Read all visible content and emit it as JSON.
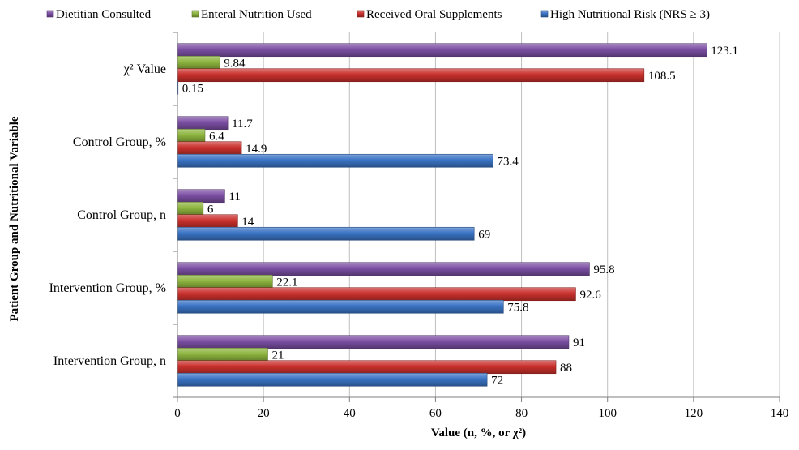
{
  "chart_data": {
    "type": "bar",
    "orientation": "horizontal",
    "title": "",
    "xlabel": "Value (n, %, or χ²)",
    "ylabel": "Patient Group and Nutritional Variable",
    "xlim": [
      0,
      140
    ],
    "xticks": [
      "0",
      "20",
      "40",
      "60",
      "80",
      "100",
      "120",
      "140"
    ],
    "grid": "vertical",
    "legend_position": "top",
    "categories": [
      "χ² Value",
      "Control Group, %",
      "Control Group, n",
      "Intervention Group, %",
      "Intervention Group, n"
    ],
    "series": [
      {
        "name": "Dietitian Consulted",
        "color": "#7b4ea3",
        "values": [
          123.1,
          11.7,
          11,
          95.8,
          91
        ],
        "labels": [
          "123.1",
          "11.7",
          "11",
          "95.8",
          "91"
        ]
      },
      {
        "name": "Enteral Nutrition Used",
        "color": "#8db43e",
        "values": [
          9.84,
          6.4,
          6,
          22.1,
          21
        ],
        "labels": [
          "9.84",
          "6.4",
          "6",
          "22.1",
          "21"
        ]
      },
      {
        "name": "Received Oral Supplements",
        "color": "#c9302c",
        "values": [
          108.5,
          14.9,
          14,
          92.6,
          88
        ],
        "labels": [
          "108.5",
          "14.9",
          "14",
          "92.6",
          "88"
        ]
      },
      {
        "name": "High Nutritional Risk (NRS ≥ 3)",
        "color": "#3a73c4",
        "values": [
          0.15,
          73.4,
          69,
          75.8,
          72
        ],
        "labels": [
          "0.15",
          "73.4",
          "69",
          "75.8",
          "72"
        ]
      }
    ]
  }
}
